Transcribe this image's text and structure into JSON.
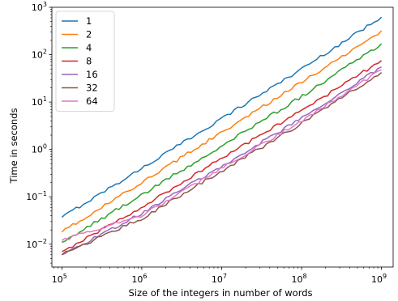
{
  "chart_data": {
    "type": "line",
    "title": "",
    "xlabel": "Size of the integers in number of words",
    "ylabel": "Time in seconds",
    "x_scale": "log",
    "y_scale": "log",
    "xlim": [
      75000,
      1400000000
    ],
    "ylim": [
      0.0033,
      1000
    ],
    "x_tick_labels": [
      {
        "value": 100000,
        "base": "10",
        "exp": "5"
      },
      {
        "value": 1000000,
        "base": "10",
        "exp": "6"
      },
      {
        "value": 10000000,
        "base": "10",
        "exp": "7"
      },
      {
        "value": 100000000,
        "base": "10",
        "exp": "8"
      },
      {
        "value": 1000000000,
        "base": "10",
        "exp": "9"
      }
    ],
    "y_tick_labels": [
      {
        "value": 0.01,
        "base": "10",
        "exp": "−2"
      },
      {
        "value": 0.1,
        "base": "10",
        "exp": "−1"
      },
      {
        "value": 1,
        "base": "10",
        "exp": "0"
      },
      {
        "value": 10,
        "base": "10",
        "exp": "1"
      },
      {
        "value": 100,
        "base": "10",
        "exp": "2"
      },
      {
        "value": 1000,
        "base": "10",
        "exp": "3"
      }
    ],
    "grid": false,
    "legend_position": "top-left",
    "series": [
      {
        "name": "1",
        "color": "#1f77b4",
        "x": [
          100000,
          1000000,
          10000000,
          100000000,
          1000000000
        ],
        "y": [
          0.037,
          0.4,
          4.5,
          50,
          620
        ]
      },
      {
        "name": "2",
        "color": "#ff7f0e",
        "x": [
          100000,
          1000000,
          10000000,
          100000000,
          1000000000
        ],
        "y": [
          0.018,
          0.2,
          2.3,
          26,
          320
        ]
      },
      {
        "name": "4",
        "color": "#2ca02c",
        "x": [
          100000,
          1000000,
          10000000,
          100000000,
          1000000000
        ],
        "y": [
          0.011,
          0.11,
          1.2,
          13,
          170
        ]
      },
      {
        "name": "8",
        "color": "#d62728",
        "x": [
          100000,
          1000000,
          10000000,
          100000000,
          1000000000
        ],
        "y": [
          0.007,
          0.06,
          0.65,
          6.5,
          75
        ]
      },
      {
        "name": "16",
        "color": "#9467bd",
        "x": [
          100000,
          1000000,
          10000000,
          100000000,
          1000000000
        ],
        "y": [
          0.006,
          0.045,
          0.45,
          4.5,
          55
        ]
      },
      {
        "name": "32",
        "color": "#8c564b",
        "x": [
          100000,
          1000000,
          10000000,
          100000000,
          1000000000
        ],
        "y": [
          0.006,
          0.035,
          0.35,
          3.5,
          42
        ]
      },
      {
        "name": "64",
        "color": "#e377c2",
        "x": [
          100000,
          1000000,
          10000000,
          100000000,
          1000000000
        ],
        "y": [
          0.012,
          0.04,
          0.4,
          4,
          48
        ]
      }
    ]
  }
}
